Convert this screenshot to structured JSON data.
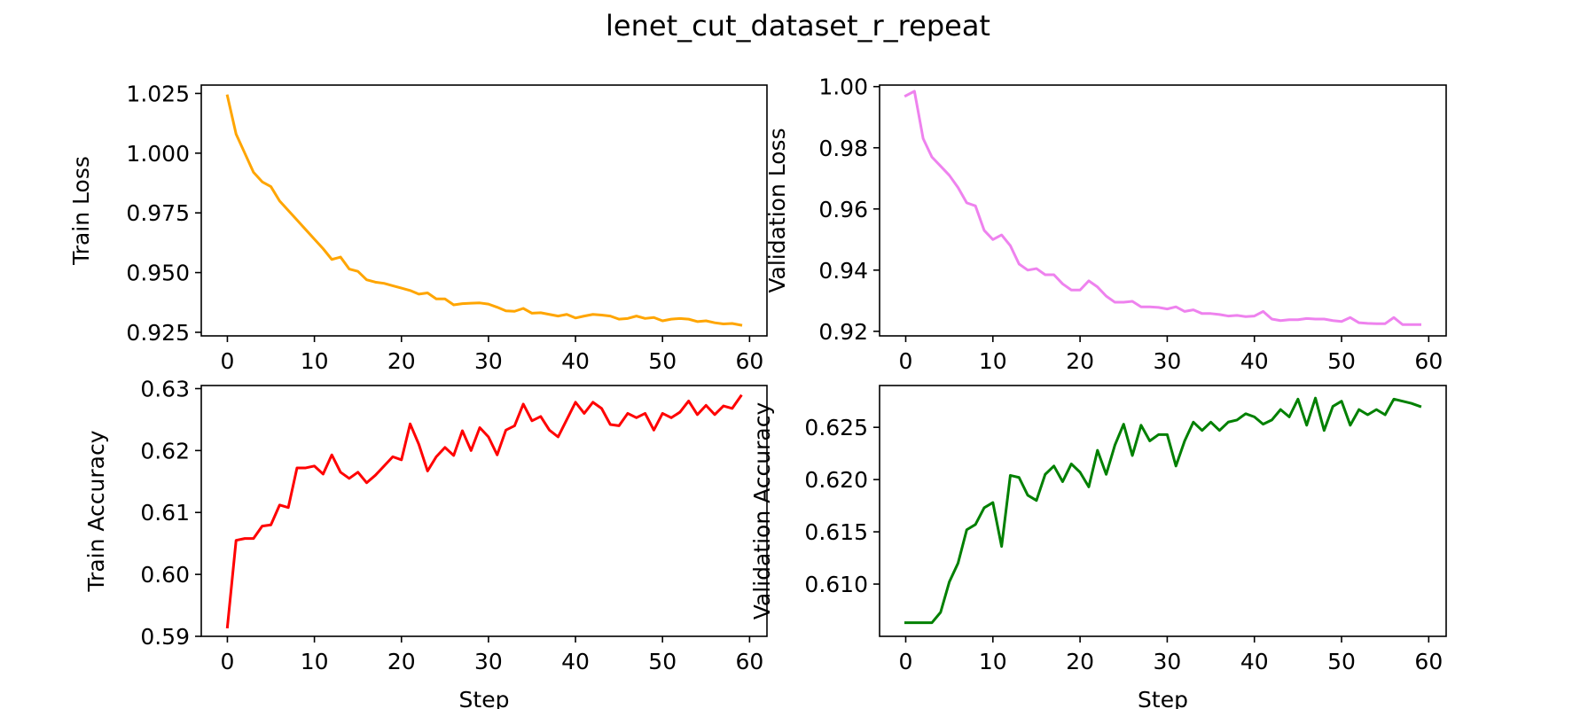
{
  "figure": {
    "title": "lenet_cut_dataset_r_repeat"
  },
  "chart_data": [
    {
      "type": "line",
      "title": "",
      "xlabel": "",
      "ylabel": "Train Loss",
      "color": "#ffa500",
      "xlim": [
        -3,
        62
      ],
      "ylim": [
        0.9235,
        1.0285
      ],
      "xticks": [
        0,
        10,
        20,
        30,
        40,
        50,
        60
      ],
      "yticks": [
        0.925,
        0.95,
        0.975,
        1.0,
        1.025
      ],
      "ytick_labels": [
        "0.925",
        "0.950",
        "0.975",
        "1.000",
        "1.025"
      ],
      "grid": false,
      "x": [
        0,
        1,
        2,
        3,
        4,
        5,
        6,
        7,
        8,
        9,
        10,
        11,
        12,
        13,
        14,
        15,
        16,
        17,
        18,
        19,
        20,
        21,
        22,
        23,
        24,
        25,
        26,
        27,
        28,
        29,
        30,
        31,
        32,
        33,
        34,
        35,
        36,
        37,
        38,
        39,
        40,
        41,
        42,
        43,
        44,
        45,
        46,
        47,
        48,
        49,
        50,
        51,
        52,
        53,
        54,
        55,
        56,
        57,
        58,
        59
      ],
      "values": [
        1.024,
        1.008,
        1.0,
        0.992,
        0.988,
        0.986,
        0.98,
        0.976,
        0.972,
        0.968,
        0.964,
        0.96,
        0.9555,
        0.9565,
        0.9515,
        0.9505,
        0.947,
        0.946,
        0.9455,
        0.9445,
        0.9435,
        0.9425,
        0.941,
        0.9415,
        0.939,
        0.939,
        0.9365,
        0.937,
        0.9372,
        0.9373,
        0.9368,
        0.9355,
        0.934,
        0.9338,
        0.935,
        0.933,
        0.9332,
        0.9325,
        0.9318,
        0.9325,
        0.931,
        0.9318,
        0.9325,
        0.9322,
        0.9318,
        0.9305,
        0.9308,
        0.9318,
        0.9308,
        0.9312,
        0.9298,
        0.9305,
        0.9308,
        0.9305,
        0.9295,
        0.9298,
        0.929,
        0.9285,
        0.9287,
        0.928
      ]
    },
    {
      "type": "line",
      "title": "",
      "xlabel": "",
      "ylabel": "Validation Loss",
      "color": "#ee82ee",
      "xlim": [
        -3,
        62
      ],
      "ylim": [
        0.9185,
        1.0005
      ],
      "xticks": [
        0,
        10,
        20,
        30,
        40,
        50,
        60
      ],
      "yticks": [
        0.92,
        0.94,
        0.96,
        0.98,
        1.0
      ],
      "ytick_labels": [
        "0.92",
        "0.94",
        "0.96",
        "0.98",
        "1.00"
      ],
      "grid": false,
      "x": [
        0,
        1,
        2,
        3,
        4,
        5,
        6,
        7,
        8,
        9,
        10,
        11,
        12,
        13,
        14,
        15,
        16,
        17,
        18,
        19,
        20,
        21,
        22,
        23,
        24,
        25,
        26,
        27,
        28,
        29,
        30,
        31,
        32,
        33,
        34,
        35,
        36,
        37,
        38,
        39,
        40,
        41,
        42,
        43,
        44,
        45,
        46,
        47,
        48,
        49,
        50,
        51,
        52,
        53,
        54,
        55,
        56,
        57,
        58,
        59
      ],
      "values": [
        0.997,
        0.9985,
        0.983,
        0.977,
        0.974,
        0.971,
        0.967,
        0.962,
        0.961,
        0.953,
        0.95,
        0.9515,
        0.948,
        0.942,
        0.94,
        0.9405,
        0.9385,
        0.9385,
        0.9355,
        0.9335,
        0.9335,
        0.9365,
        0.9345,
        0.9315,
        0.9295,
        0.9295,
        0.9298,
        0.928,
        0.928,
        0.9278,
        0.9273,
        0.928,
        0.9265,
        0.927,
        0.9258,
        0.9258,
        0.9255,
        0.925,
        0.9252,
        0.9248,
        0.925,
        0.9265,
        0.924,
        0.9235,
        0.9238,
        0.9238,
        0.9242,
        0.924,
        0.924,
        0.9235,
        0.9232,
        0.9245,
        0.9228,
        0.9226,
        0.9225,
        0.9225,
        0.9245,
        0.9222,
        0.9222,
        0.9222
      ]
    },
    {
      "type": "line",
      "title": "",
      "xlabel": "Step",
      "ylabel": "Train Accuracy",
      "color": "#ff0000",
      "xlim": [
        -3,
        62
      ],
      "ylim": [
        0.59,
        0.6305
      ],
      "xticks": [
        0,
        10,
        20,
        30,
        40,
        50,
        60
      ],
      "yticks": [
        0.59,
        0.6,
        0.61,
        0.62,
        0.63
      ],
      "ytick_labels": [
        "0.59",
        "0.60",
        "0.61",
        "0.62",
        "0.63"
      ],
      "grid": false,
      "x": [
        0,
        1,
        2,
        3,
        4,
        5,
        6,
        7,
        8,
        9,
        10,
        11,
        12,
        13,
        14,
        15,
        16,
        17,
        18,
        19,
        20,
        21,
        22,
        23,
        24,
        25,
        26,
        27,
        28,
        29,
        30,
        31,
        32,
        33,
        34,
        35,
        36,
        37,
        38,
        39,
        40,
        41,
        42,
        43,
        44,
        45,
        46,
        47,
        48,
        49,
        50,
        51,
        52,
        53,
        54,
        55,
        56,
        57,
        58,
        59
      ],
      "values": [
        0.5915,
        0.6055,
        0.6058,
        0.6058,
        0.6078,
        0.608,
        0.6112,
        0.6108,
        0.6172,
        0.6172,
        0.6175,
        0.6162,
        0.6193,
        0.6165,
        0.6155,
        0.6165,
        0.6148,
        0.616,
        0.6175,
        0.619,
        0.6185,
        0.6243,
        0.621,
        0.6167,
        0.619,
        0.6205,
        0.6192,
        0.6232,
        0.62,
        0.6237,
        0.6222,
        0.6193,
        0.6233,
        0.624,
        0.6275,
        0.6248,
        0.6255,
        0.6233,
        0.6222,
        0.625,
        0.6278,
        0.626,
        0.6278,
        0.6268,
        0.6242,
        0.624,
        0.626,
        0.6253,
        0.626,
        0.6233,
        0.626,
        0.6253,
        0.6262,
        0.628,
        0.6258,
        0.6273,
        0.6258,
        0.6272,
        0.6268,
        0.6288
      ]
    },
    {
      "type": "line",
      "title": "",
      "xlabel": "Step",
      "ylabel": "Validation Accuracy",
      "color": "#008000",
      "xlim": [
        -3,
        62
      ],
      "ylim": [
        0.605,
        0.629
      ],
      "xticks": [
        0,
        10,
        20,
        30,
        40,
        50,
        60
      ],
      "yticks": [
        0.61,
        0.615,
        0.62,
        0.625
      ],
      "ytick_labels": [
        "0.610",
        "0.615",
        "0.620",
        "0.625"
      ],
      "grid": false,
      "x": [
        0,
        1,
        2,
        3,
        4,
        5,
        6,
        7,
        8,
        9,
        10,
        11,
        12,
        13,
        14,
        15,
        16,
        17,
        18,
        19,
        20,
        21,
        22,
        23,
        24,
        25,
        26,
        27,
        28,
        29,
        30,
        31,
        32,
        33,
        34,
        35,
        36,
        37,
        38,
        39,
        40,
        41,
        42,
        43,
        44,
        45,
        46,
        47,
        48,
        49,
        50,
        51,
        52,
        53,
        54,
        55,
        56,
        57,
        58,
        59
      ],
      "values": [
        0.6063,
        0.6063,
        0.6063,
        0.6063,
        0.6073,
        0.6102,
        0.612,
        0.6152,
        0.6157,
        0.6173,
        0.6178,
        0.6136,
        0.6204,
        0.6202,
        0.6185,
        0.618,
        0.6205,
        0.6213,
        0.6198,
        0.6215,
        0.6207,
        0.6193,
        0.6228,
        0.6205,
        0.6233,
        0.6253,
        0.6223,
        0.6252,
        0.6237,
        0.6243,
        0.6243,
        0.6213,
        0.6237,
        0.6255,
        0.6247,
        0.6255,
        0.6247,
        0.6255,
        0.6257,
        0.6263,
        0.626,
        0.6253,
        0.6257,
        0.6267,
        0.626,
        0.6277,
        0.6252,
        0.6278,
        0.6247,
        0.627,
        0.6275,
        0.6252,
        0.6267,
        0.6262,
        0.6267,
        0.6262,
        0.6277,
        0.6275,
        0.6273,
        0.627
      ]
    }
  ]
}
